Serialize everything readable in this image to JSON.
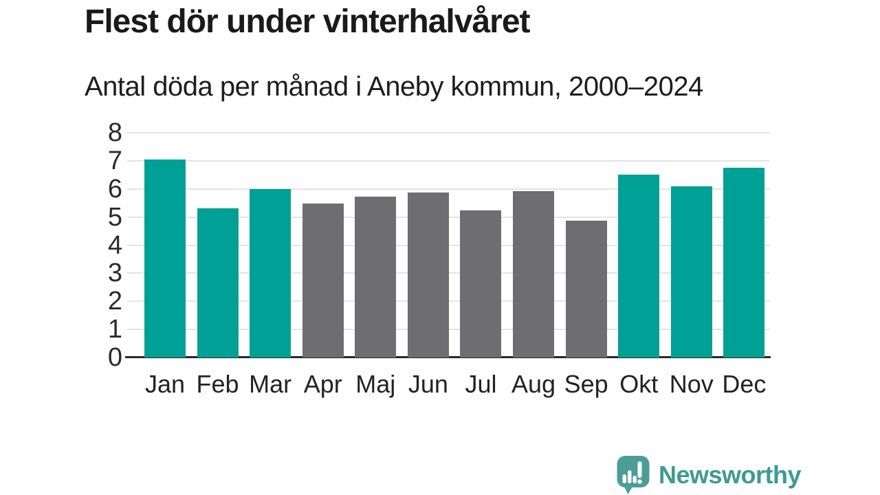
{
  "header": {
    "title": "Flest dör under vinterhalvåret",
    "subtitle": "Antal döda per månad i Aneby kommun, 2000–2024"
  },
  "chart_data": {
    "type": "bar",
    "categories": [
      "Jan",
      "Feb",
      "Mar",
      "Apr",
      "Maj",
      "Jun",
      "Jul",
      "Aug",
      "Sep",
      "Okt",
      "Nov",
      "Dec"
    ],
    "values": [
      7.04,
      5.32,
      6.0,
      5.48,
      5.72,
      5.88,
      5.24,
      5.92,
      4.88,
      6.52,
      6.08,
      6.76
    ],
    "highlighted": [
      true,
      true,
      true,
      false,
      false,
      false,
      false,
      false,
      false,
      true,
      true,
      true
    ],
    "title": "Flest dör under vinterhalvåret",
    "subtitle": "Antal döda per månad i Aneby kommun, 2000–2024",
    "xlabel": "",
    "ylabel": "",
    "ylim": [
      0,
      8
    ],
    "yticks": [
      0,
      1,
      2,
      3,
      4,
      5,
      6,
      7,
      8
    ],
    "grid": true,
    "legend": "none",
    "colors": {
      "highlight": "#00a096",
      "default": "#6e6d72",
      "gridline": "#e4e4e4",
      "axis_line": "#26282b",
      "tick_text": "#2b2b2b"
    }
  },
  "footer": {
    "brand": "Newsworthy",
    "logo": "newsworthy-logo",
    "brand_color": "#3d9b93",
    "logo_bubble_color": "#4a9e97",
    "logo_glyph_color": "#ffffff"
  }
}
